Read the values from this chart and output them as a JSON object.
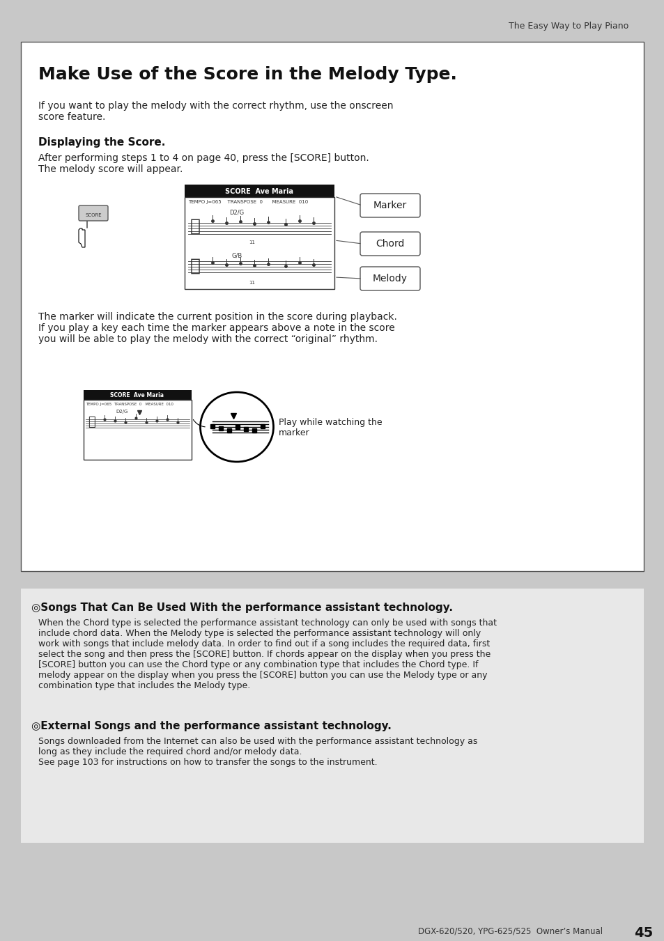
{
  "page_bg": "#c8c8c8",
  "content_bg": "#ffffff",
  "gray_box_bg": "#e8e8e8",
  "header_text": "The Easy Way to Play Piano",
  "footer_text": "DGX-620/520, YPG-625/525  Owner’s Manual",
  "page_number": "45",
  "box_title": "Make Use of the Score in the Melody Type.",
  "intro_text": "If you want to play the melody with the correct rhythm, use the onscreen\nscore feature.",
  "section1_title": "Displaying the Score.",
  "section1_text": "After performing steps 1 to 4 on page 40, press the [SCORE] button.\nThe melody score will appear.",
  "marker_label": "Marker",
  "chord_label": "Chord",
  "melody_label": "Melody",
  "score_label": "SCORE",
  "para2_text": "The marker will indicate the current position in the score during playback.\nIf you play a key each time the marker appears above a note in the score\nyou will be able to play the melody with the correct “original” rhythm.",
  "play_while_label": "Play while watching the\nmarker",
  "songs_title": "◎Songs That Can Be Used With the performance assistant technology.",
  "songs_body": "When the Chord type is selected the performance assistant technology can only be used with songs that\ninclude chord data. When the Melody type is selected the performance assistant technology will only\nwork with songs that include melody data. In order to find out if a song includes the required data, first\nselect the song and then press the [SCORE] button. If chords appear on the display when you press the\n[SCORE] button you can use the Chord type or any combination type that includes the Chord type. If\nmelody appear on the display when you press the [SCORE] button you can use the Melody type or any\ncombination type that includes the Melody type.",
  "external_title": "◎External Songs and the performance assistant technology.",
  "external_body": "Songs downloaded from the Internet can also be used with the performance assistant technology as\nlong as they include the required chord and/or melody data.\nSee page 103 for instructions on how to transfer the songs to the instrument."
}
